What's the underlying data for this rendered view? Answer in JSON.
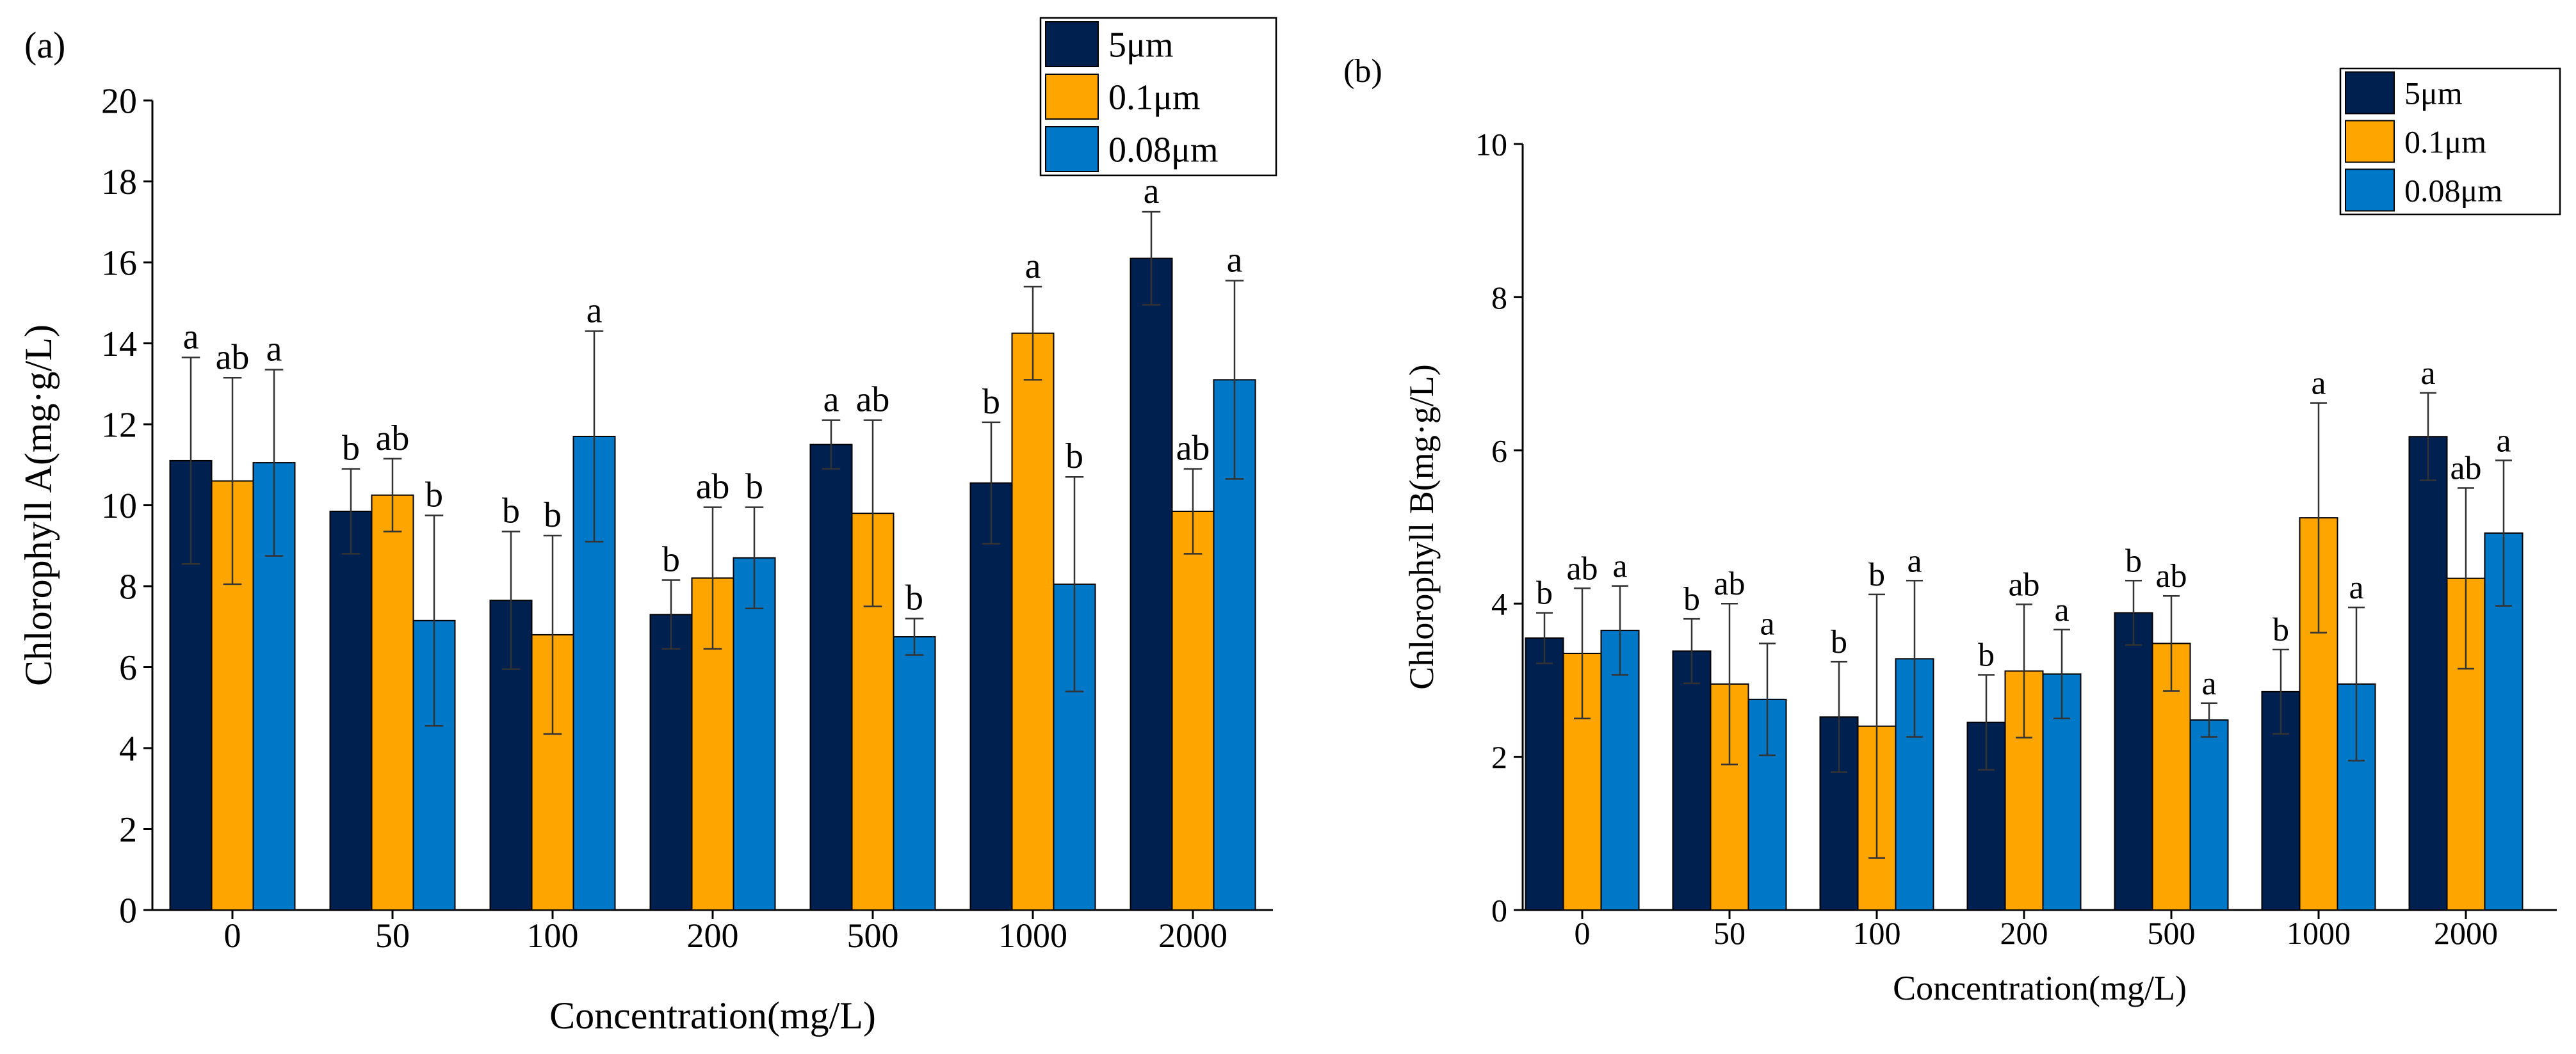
{
  "colors": {
    "5um": "#00204F",
    "0.1um": "#FFA500",
    "0.08um": "#0078C8"
  },
  "chart_data": [
    {
      "type": "bar",
      "panel_label": "(a)",
      "title": "",
      "xlabel": "Concentration(mg/L)",
      "ylabel": "Chlorophyll A(mg·g/L)",
      "ylim": [
        0,
        20
      ],
      "yticks": [
        "0",
        "2",
        "4",
        "6",
        "8",
        "10",
        "12",
        "14",
        "16",
        "18",
        "20"
      ],
      "categories": [
        "0",
        "50",
        "100",
        "200",
        "500",
        "1000",
        "2000"
      ],
      "legend_position": "top-right",
      "series": [
        {
          "name": "5μm",
          "color_key": "5um",
          "values": [
            11.1,
            9.85,
            7.65,
            7.3,
            11.5,
            10.55,
            16.1
          ],
          "errors": [
            2.55,
            1.05,
            1.7,
            0.85,
            0.6,
            1.5,
            1.15
          ],
          "labels": [
            "a",
            "b",
            "b",
            "b",
            "a",
            "b",
            "a"
          ]
        },
        {
          "name": "0.1μm",
          "color_key": "0.1um",
          "values": [
            10.6,
            10.25,
            6.8,
            8.2,
            9.8,
            14.25,
            9.85
          ],
          "errors": [
            2.55,
            0.9,
            2.45,
            1.75,
            2.3,
            1.15,
            1.05
          ],
          "labels": [
            "ab",
            "ab",
            "b",
            "ab",
            "ab",
            "a",
            "ab"
          ]
        },
        {
          "name": "0.08μm",
          "color_key": "0.08um",
          "values": [
            11.05,
            7.15,
            11.7,
            8.7,
            6.75,
            8.05,
            13.1
          ],
          "errors": [
            2.3,
            2.6,
            2.6,
            1.25,
            0.45,
            2.65,
            2.45
          ],
          "labels": [
            "a",
            "b",
            "a",
            "b",
            "b",
            "b",
            "a"
          ]
        }
      ]
    },
    {
      "type": "bar",
      "panel_label": "(b)",
      "title": "",
      "xlabel": "Concentration(mg/L)",
      "ylabel": "Chlorophyll B(mg·g/L)",
      "ylim": [
        0,
        10
      ],
      "yticks": [
        "0",
        "2",
        "4",
        "6",
        "8",
        "10"
      ],
      "categories": [
        "0",
        "50",
        "100",
        "200",
        "500",
        "1000",
        "2000"
      ],
      "legend_position": "top-right",
      "series": [
        {
          "name": "5μm",
          "color_key": "5um",
          "values": [
            3.55,
            3.38,
            2.52,
            2.45,
            3.88,
            2.85,
            6.18
          ],
          "errors": [
            0.33,
            0.42,
            0.72,
            0.62,
            0.42,
            0.55,
            0.57
          ],
          "labels": [
            "b",
            "b",
            "b",
            "b",
            "b",
            "b",
            "a"
          ]
        },
        {
          "name": "0.1μm",
          "color_key": "0.1um",
          "values": [
            3.35,
            2.95,
            2.4,
            3.12,
            3.48,
            5.12,
            4.33
          ],
          "errors": [
            0.85,
            1.05,
            1.72,
            0.87,
            0.62,
            1.5,
            1.18
          ],
          "labels": [
            "ab",
            "ab",
            "b",
            "ab",
            "ab",
            "a",
            "ab"
          ]
        },
        {
          "name": "0.08μm",
          "color_key": "0.08um",
          "values": [
            3.65,
            2.75,
            3.28,
            3.08,
            2.48,
            2.95,
            4.92
          ],
          "errors": [
            0.58,
            0.73,
            1.02,
            0.58,
            0.22,
            1.0,
            0.95
          ],
          "labels": [
            "a",
            "a",
            "a",
            "a",
            "a",
            "a",
            "a"
          ]
        }
      ]
    }
  ]
}
